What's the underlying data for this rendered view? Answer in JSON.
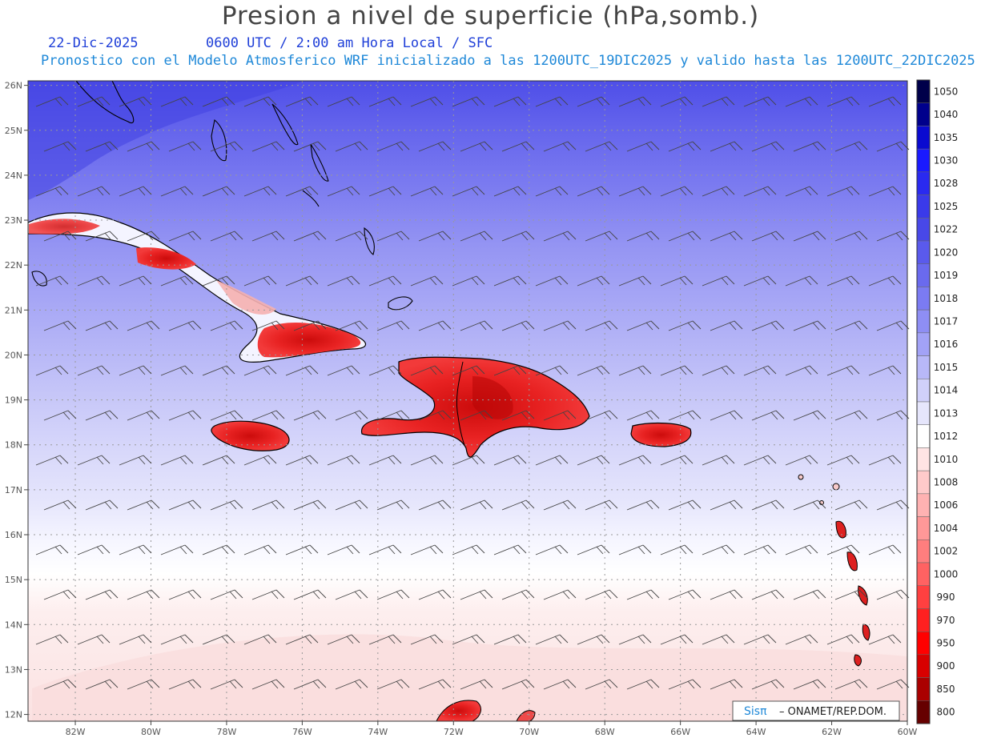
{
  "header": {
    "title": "Presion a nivel de superficie (hPa,somb.)",
    "date": "22-Dic-2025",
    "time": "0600 UTC / 2:00 am Hora Local / SFC",
    "subtitle": "Pronostico con el Modelo Atmosferico WRF inicializado a las 1200UTC_19DIC2025 y valido hasta las  1200UTC_22DIC2025"
  },
  "axes": {
    "lon_labels": [
      "82W",
      "80W",
      "78W",
      "76W",
      "74W",
      "72W",
      "70W",
      "68W",
      "66W",
      "64W",
      "62W",
      "60W"
    ],
    "lon_values": [
      -82,
      -80,
      -78,
      -76,
      -74,
      -72,
      -70,
      -68,
      -66,
      -64,
      -62,
      -60
    ],
    "lat_labels": [
      "26N",
      "25N",
      "24N",
      "23N",
      "22N",
      "21N",
      "20N",
      "19N",
      "18N",
      "17N",
      "16N",
      "15N",
      "14N",
      "13N",
      "12N"
    ],
    "lat_values": [
      26,
      25,
      24,
      23,
      22,
      21,
      20,
      19,
      18,
      17,
      16,
      15,
      14,
      13,
      12
    ],
    "lon_range": [
      -83.25,
      -60
    ],
    "lat_range": [
      11.85,
      26.1
    ]
  },
  "colorbar": {
    "levels": [
      "1050",
      "1040",
      "1035",
      "1030",
      "1028",
      "1025",
      "1022",
      "1020",
      "1019",
      "1018",
      "1017",
      "1016",
      "1015",
      "1014",
      "1013",
      "1012",
      "1010",
      "1008",
      "1006",
      "1004",
      "1002",
      "1000",
      "990",
      "970",
      "950",
      "900",
      "850",
      "800"
    ],
    "colors": [
      "#00004a",
      "#00008c",
      "#0a0ad0",
      "#1a1aff",
      "#2a2af0",
      "#3a3aea",
      "#4848e8",
      "#5a5aec",
      "#6a6aee",
      "#7b7bf2",
      "#8e8ef4",
      "#a2a2f6",
      "#b8b8f8",
      "#d0d0fa",
      "#e6e6fc",
      "#ffffff",
      "#ffe4e4",
      "#ffcaca",
      "#ffb2b2",
      "#ff9898",
      "#ff7e7e",
      "#ff6262",
      "#ff4040",
      "#ff2020",
      "#ff0000",
      "#d80000",
      "#aa0000",
      "#660000"
    ]
  },
  "credit": {
    "brand": "Sisπ",
    "text": "– ONAMET/REP.DOM."
  }
}
